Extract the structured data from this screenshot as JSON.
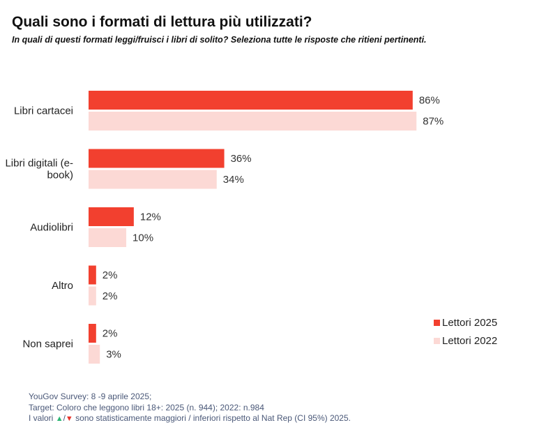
{
  "header": {
    "title": "Quali sono i formati di lettura più utilizzati?",
    "subtitle": "In quali di questi formati leggi/fruisci i libri di solito? Seleziona tutte le risposte che ritieni pertinenti."
  },
  "chart_data": {
    "type": "bar",
    "orientation": "horizontal",
    "categories": [
      "Libri cartacei",
      "Libri digitali (e-book)",
      "Audiolibri",
      "Altro",
      "Non saprei"
    ],
    "category_lines": [
      [
        "Libri cartacei"
      ],
      [
        "Libri digitali (e-",
        "book)"
      ],
      [
        "Audiolibri"
      ],
      [
        "Altro"
      ],
      [
        "Non saprei"
      ]
    ],
    "series": [
      {
        "name": "Lettori 2025",
        "color": "#f2402f",
        "values": [
          86,
          36,
          12,
          2,
          2
        ],
        "labels": [
          "86%",
          "36%",
          "12%",
          "2%",
          "2%"
        ]
      },
      {
        "name": "Lettori 2022",
        "color": "#fcd9d5",
        "values": [
          87,
          34,
          10,
          2,
          3
        ],
        "labels": [
          "87%",
          "34%",
          "10%",
          "2%",
          "3%"
        ]
      }
    ],
    "xlim": [
      0,
      100
    ],
    "value_suffix": "%",
    "legend_position": "right",
    "grid": false
  },
  "legend": {
    "items": [
      {
        "label": "Lettori 2025",
        "color": "#f2402f"
      },
      {
        "label": "Lettori 2022",
        "color": "#fcd9d5"
      }
    ]
  },
  "footer": {
    "line1": "YouGov Survey: 8 -9 aprile 2025;",
    "line2": "Target: Coloro che leggono libri 18+: 2025 (n. 944); 2022: n.984",
    "line3_before": "I valori ",
    "arrow_up": "▲",
    "slash": "/",
    "arrow_down": "▼",
    "line3_after": " sono statisticamente maggiori / inferiori rispetto al Nat Rep (CI 95%) 2025."
  }
}
